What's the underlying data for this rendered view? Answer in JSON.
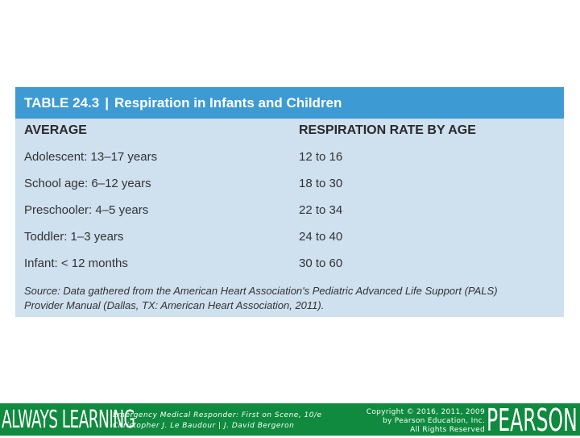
{
  "table": {
    "title_number": "TABLE 24.3",
    "title_separator": "|",
    "title_text": "Respiration in Infants and Children",
    "columns": [
      "AVERAGE",
      "RESPIRATION RATE BY AGE"
    ],
    "rows": [
      {
        "age": "Adolescent: 13–17 years",
        "rate": "12 to 16"
      },
      {
        "age": "School age: 6–12 years",
        "rate": "18 to 30"
      },
      {
        "age": "Preschooler: 4–5 years",
        "rate": "22 to 34"
      },
      {
        "age": "Toddler: 1–3 years",
        "rate": "24 to 40"
      },
      {
        "age": "Infant: < 12 months",
        "rate": "30 to 60"
      }
    ],
    "source_line1": "Source: Data gathered from the American Heart Association's Pediatric Advanced Life Support (PALS)",
    "source_line2": "Provider Manual (Dallas, TX: American Heart Association, 2011)."
  },
  "footer": {
    "brand_left": "ALWAYS LEARNING",
    "book_title": "Emergency Medical Responder: First on Scene, 10/e",
    "authors": "Christopher J. Le Baudour | J. David Bergeron",
    "copyright_line1": "Copyright © 2016, 2011, 2009",
    "copyright_line2": "by Pearson Education, Inc.",
    "copyright_line3": "All Rights Reserved",
    "brand_right": "PEARSON"
  },
  "colors": {
    "header_blue": "#3e9ad3",
    "table_bg": "#cfe0ef",
    "footer_green": "#0f8a3e"
  }
}
